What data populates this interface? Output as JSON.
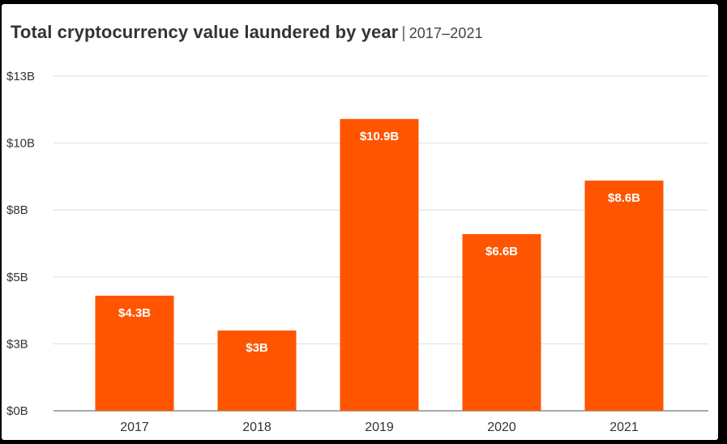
{
  "chart_data": {
    "type": "bar",
    "title": "Total cryptocurrency value laundered by year",
    "separator": "|",
    "subtitle": "2017–2021",
    "categories": [
      "2017",
      "2018",
      "2019",
      "2020",
      "2021"
    ],
    "values": [
      4.3,
      3.0,
      10.9,
      6.6,
      8.6
    ],
    "data_labels": [
      "$4.3B",
      "$3B",
      "$10.9B",
      "$6.6B",
      "$8.6B"
    ],
    "y_ticks": [
      0,
      2.5,
      5,
      7.5,
      10,
      12.5
    ],
    "y_tick_labels": [
      "$0B",
      "$3B",
      "$5B",
      "$8B",
      "$10B",
      "$13B"
    ],
    "ylim": [
      0,
      12.5
    ],
    "xlabel": "",
    "ylabel": "",
    "grid": true,
    "bar_color": "#ff5500",
    "grid_color": "#dddddd",
    "label_color": "#ffffff"
  }
}
